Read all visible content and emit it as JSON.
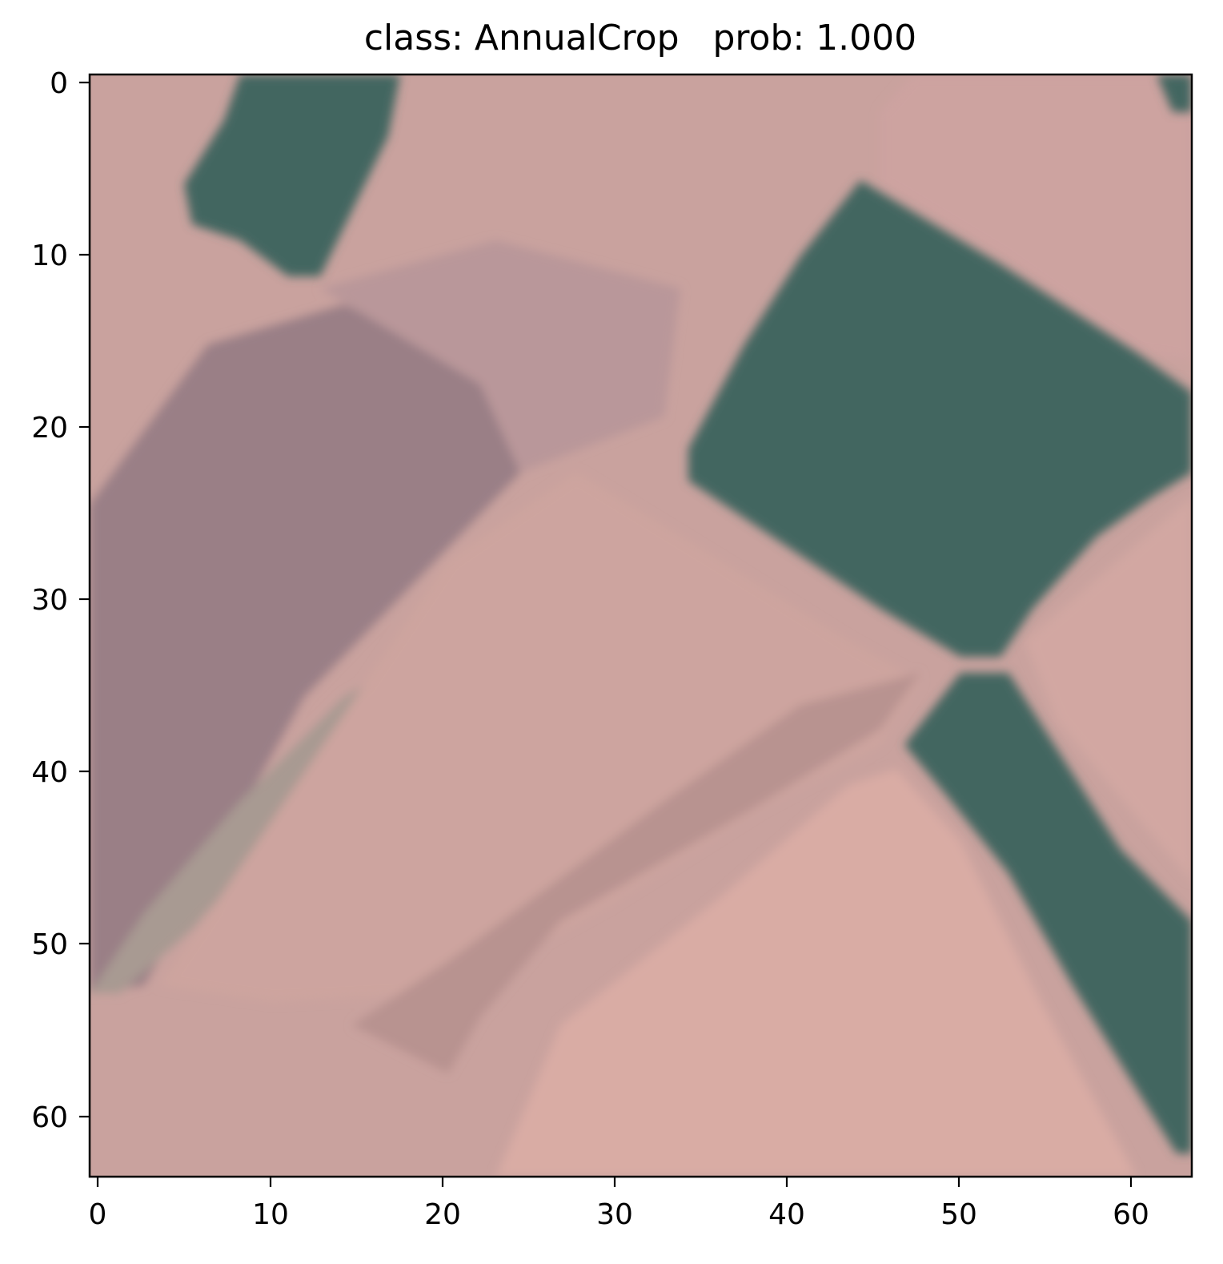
{
  "title": "class: AnnualCrop   prob: 1.000",
  "image": {
    "type": "satellite-rgb-tile",
    "grid_size": 64,
    "colors": {
      "background_pink": "#c9a29e",
      "field_green": "#436660",
      "muted_purple": "#9a7f86",
      "light_pink": "#d8aca4"
    }
  },
  "axes": {
    "x_ticks": [
      "0",
      "10",
      "20",
      "30",
      "40",
      "50",
      "60"
    ],
    "y_ticks": [
      "0",
      "10",
      "20",
      "30",
      "40",
      "50",
      "60"
    ]
  }
}
